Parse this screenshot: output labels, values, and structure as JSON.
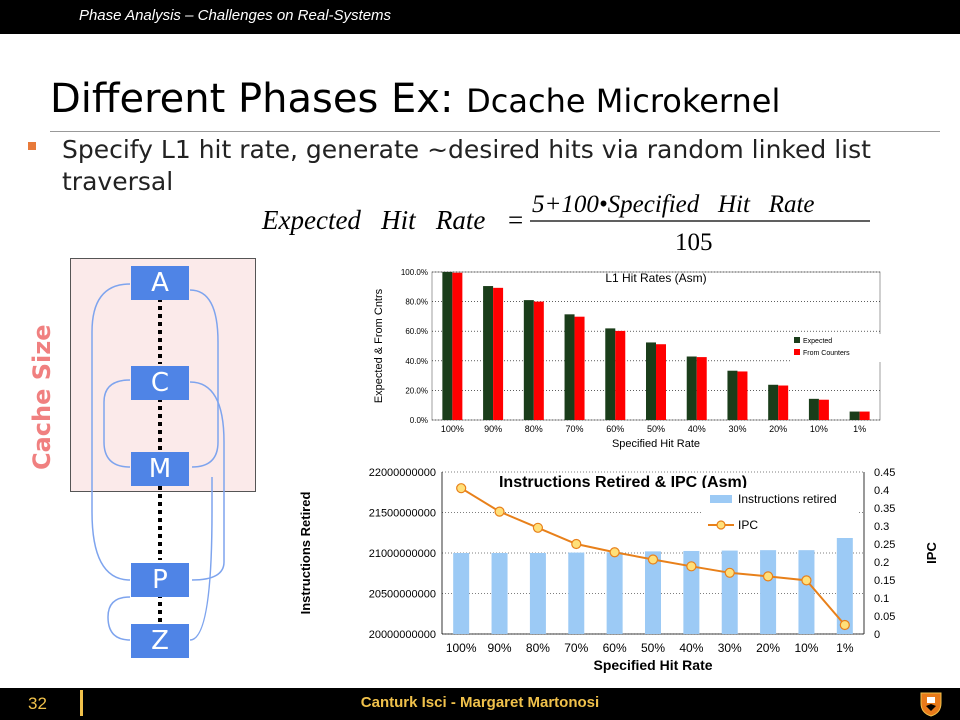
{
  "header": {
    "title": "Phase Analysis – Challenges on Real-Systems"
  },
  "slide": {
    "title_main": "Different Phases Ex: ",
    "title_sub": "Dcache Microkernel",
    "bullet": "Specify L1 hit rate, generate ~desired hits via random linked list traversal",
    "formula": {
      "lhs": "Expected   Hit   Rate",
      "numerator": "5+100•Specified   Hit   Rate",
      "denominator": "105"
    }
  },
  "diagram": {
    "cache_label": "Cache Size",
    "nodes": [
      "A",
      "C",
      "M",
      "P",
      "Z"
    ]
  },
  "footer": {
    "page": "32",
    "authors": "Canturk Isci - Margaret Martonosi"
  },
  "colors": {
    "expected": "#1a3d1a",
    "counters": "#ff0000",
    "instr": "#9ccaf5",
    "ipc": "#e8801a",
    "ipc_marker": "#ffe07a",
    "node": "#4f84e6",
    "accent": "#f0c14b"
  },
  "chart_data": [
    {
      "type": "bar",
      "title": "L1 Hit Rates (Asm)",
      "xlabel": "Specified Hit Rate",
      "ylabel": "Expected & From Cntrs",
      "categories": [
        "100%",
        "90%",
        "80%",
        "70%",
        "60%",
        "50%",
        "40%",
        "30%",
        "20%",
        "10%",
        "1%"
      ],
      "series": [
        {
          "name": "Expected",
          "values": [
            100,
            90.5,
            81,
            71.4,
            61.9,
            52.4,
            42.9,
            33.3,
            23.8,
            14.3,
            5.7
          ]
        },
        {
          "name": "From Counters",
          "values": [
            99.5,
            89.3,
            80,
            69.8,
            60.2,
            51.2,
            42.5,
            32.8,
            23.3,
            13.7,
            5.7
          ]
        }
      ],
      "ylim": [
        0,
        100
      ],
      "yticks": [
        "0.0%",
        "20.0%",
        "40.0%",
        "60.0%",
        "80.0%",
        "100.0%"
      ],
      "legend": "right"
    },
    {
      "type": "bar",
      "title": "Instructions Retired & IPC (Asm)",
      "xlabel": "Specified Hit Rate",
      "ylabel": "Instructions Retired",
      "y2label": "IPC",
      "categories": [
        "100%",
        "90%",
        "80%",
        "70%",
        "60%",
        "50%",
        "40%",
        "30%",
        "20%",
        "10%",
        "1%"
      ],
      "series": [
        {
          "name": "Instructions retired",
          "type": "bar",
          "axis": "left",
          "values": [
            21000000000,
            21000000000,
            21000000000,
            21005000000,
            21010000000,
            21020000000,
            21025000000,
            21030000000,
            21035000000,
            21035000000,
            21200000000
          ]
        },
        {
          "name": "IPC",
          "type": "line",
          "axis": "right",
          "values": [
            0.405,
            0.34,
            0.295,
            0.25,
            0.227,
            0.207,
            0.188,
            0.17,
            0.16,
            0.149,
            0.025
          ]
        }
      ],
      "ylim": [
        20000000000,
        22000000000
      ],
      "yticks": [
        "20000000000",
        "20500000000",
        "21000000000",
        "21500000000",
        "22000000000"
      ],
      "y2lim": [
        0,
        0.45
      ],
      "y2ticks": [
        "0",
        "0.05",
        "0.1",
        "0.15",
        "0.2",
        "0.25",
        "0.3",
        "0.35",
        "0.4",
        "0.45"
      ],
      "legend": "top-right"
    }
  ]
}
